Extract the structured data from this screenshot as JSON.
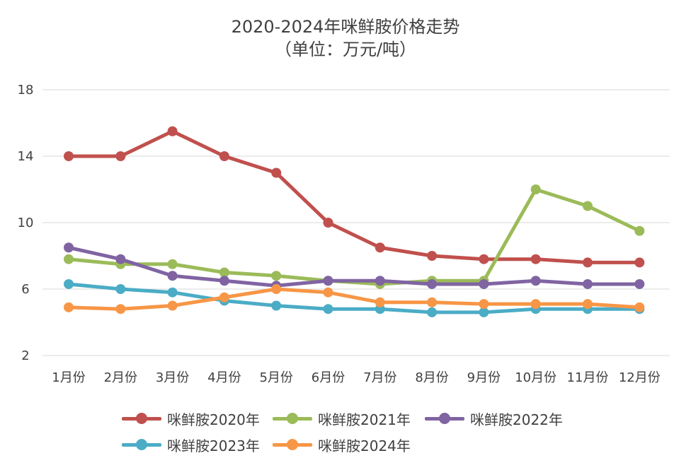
{
  "chart_data": {
    "type": "line",
    "title": "2020-2024年咪鲜胺价格走势",
    "subtitle": "（单位：万元/吨）",
    "categories": [
      "1月份",
      "2月份",
      "3月份",
      "4月份",
      "5月份",
      "6月份",
      "7月份",
      "8月份",
      "9月份",
      "10月份",
      "11月份",
      "12月份"
    ],
    "ylim": [
      2,
      18
    ],
    "yticks": [
      2,
      6,
      10,
      14,
      18
    ],
    "grid": true,
    "legend_position": "bottom",
    "series": [
      {
        "name": "咪鲜胺2020年",
        "color": "#c0504d",
        "values": [
          14.0,
          14.0,
          15.5,
          14.0,
          13.0,
          10.0,
          8.5,
          8.0,
          7.8,
          7.8,
          7.6,
          7.6
        ]
      },
      {
        "name": "咪鲜胺2021年",
        "color": "#9bbb59",
        "values": [
          7.8,
          7.5,
          7.5,
          7.0,
          6.8,
          6.5,
          6.3,
          6.5,
          6.5,
          12.0,
          11.0,
          9.5
        ]
      },
      {
        "name": "咪鲜胺2022年",
        "color": "#8064a2",
        "values": [
          8.5,
          7.8,
          6.8,
          6.5,
          6.2,
          6.5,
          6.5,
          6.3,
          6.3,
          6.5,
          6.3,
          6.3
        ]
      },
      {
        "name": "咪鲜胺2023年",
        "color": "#4bacc6",
        "values": [
          6.3,
          6.0,
          5.8,
          5.3,
          5.0,
          4.8,
          4.8,
          4.6,
          4.6,
          4.8,
          4.8,
          4.8
        ]
      },
      {
        "name": "咪鲜胺2024年",
        "color": "#f79646",
        "values": [
          4.9,
          4.8,
          5.0,
          5.5,
          6.0,
          5.8,
          5.2,
          5.2,
          5.1,
          5.1,
          5.1,
          4.9
        ]
      }
    ]
  }
}
